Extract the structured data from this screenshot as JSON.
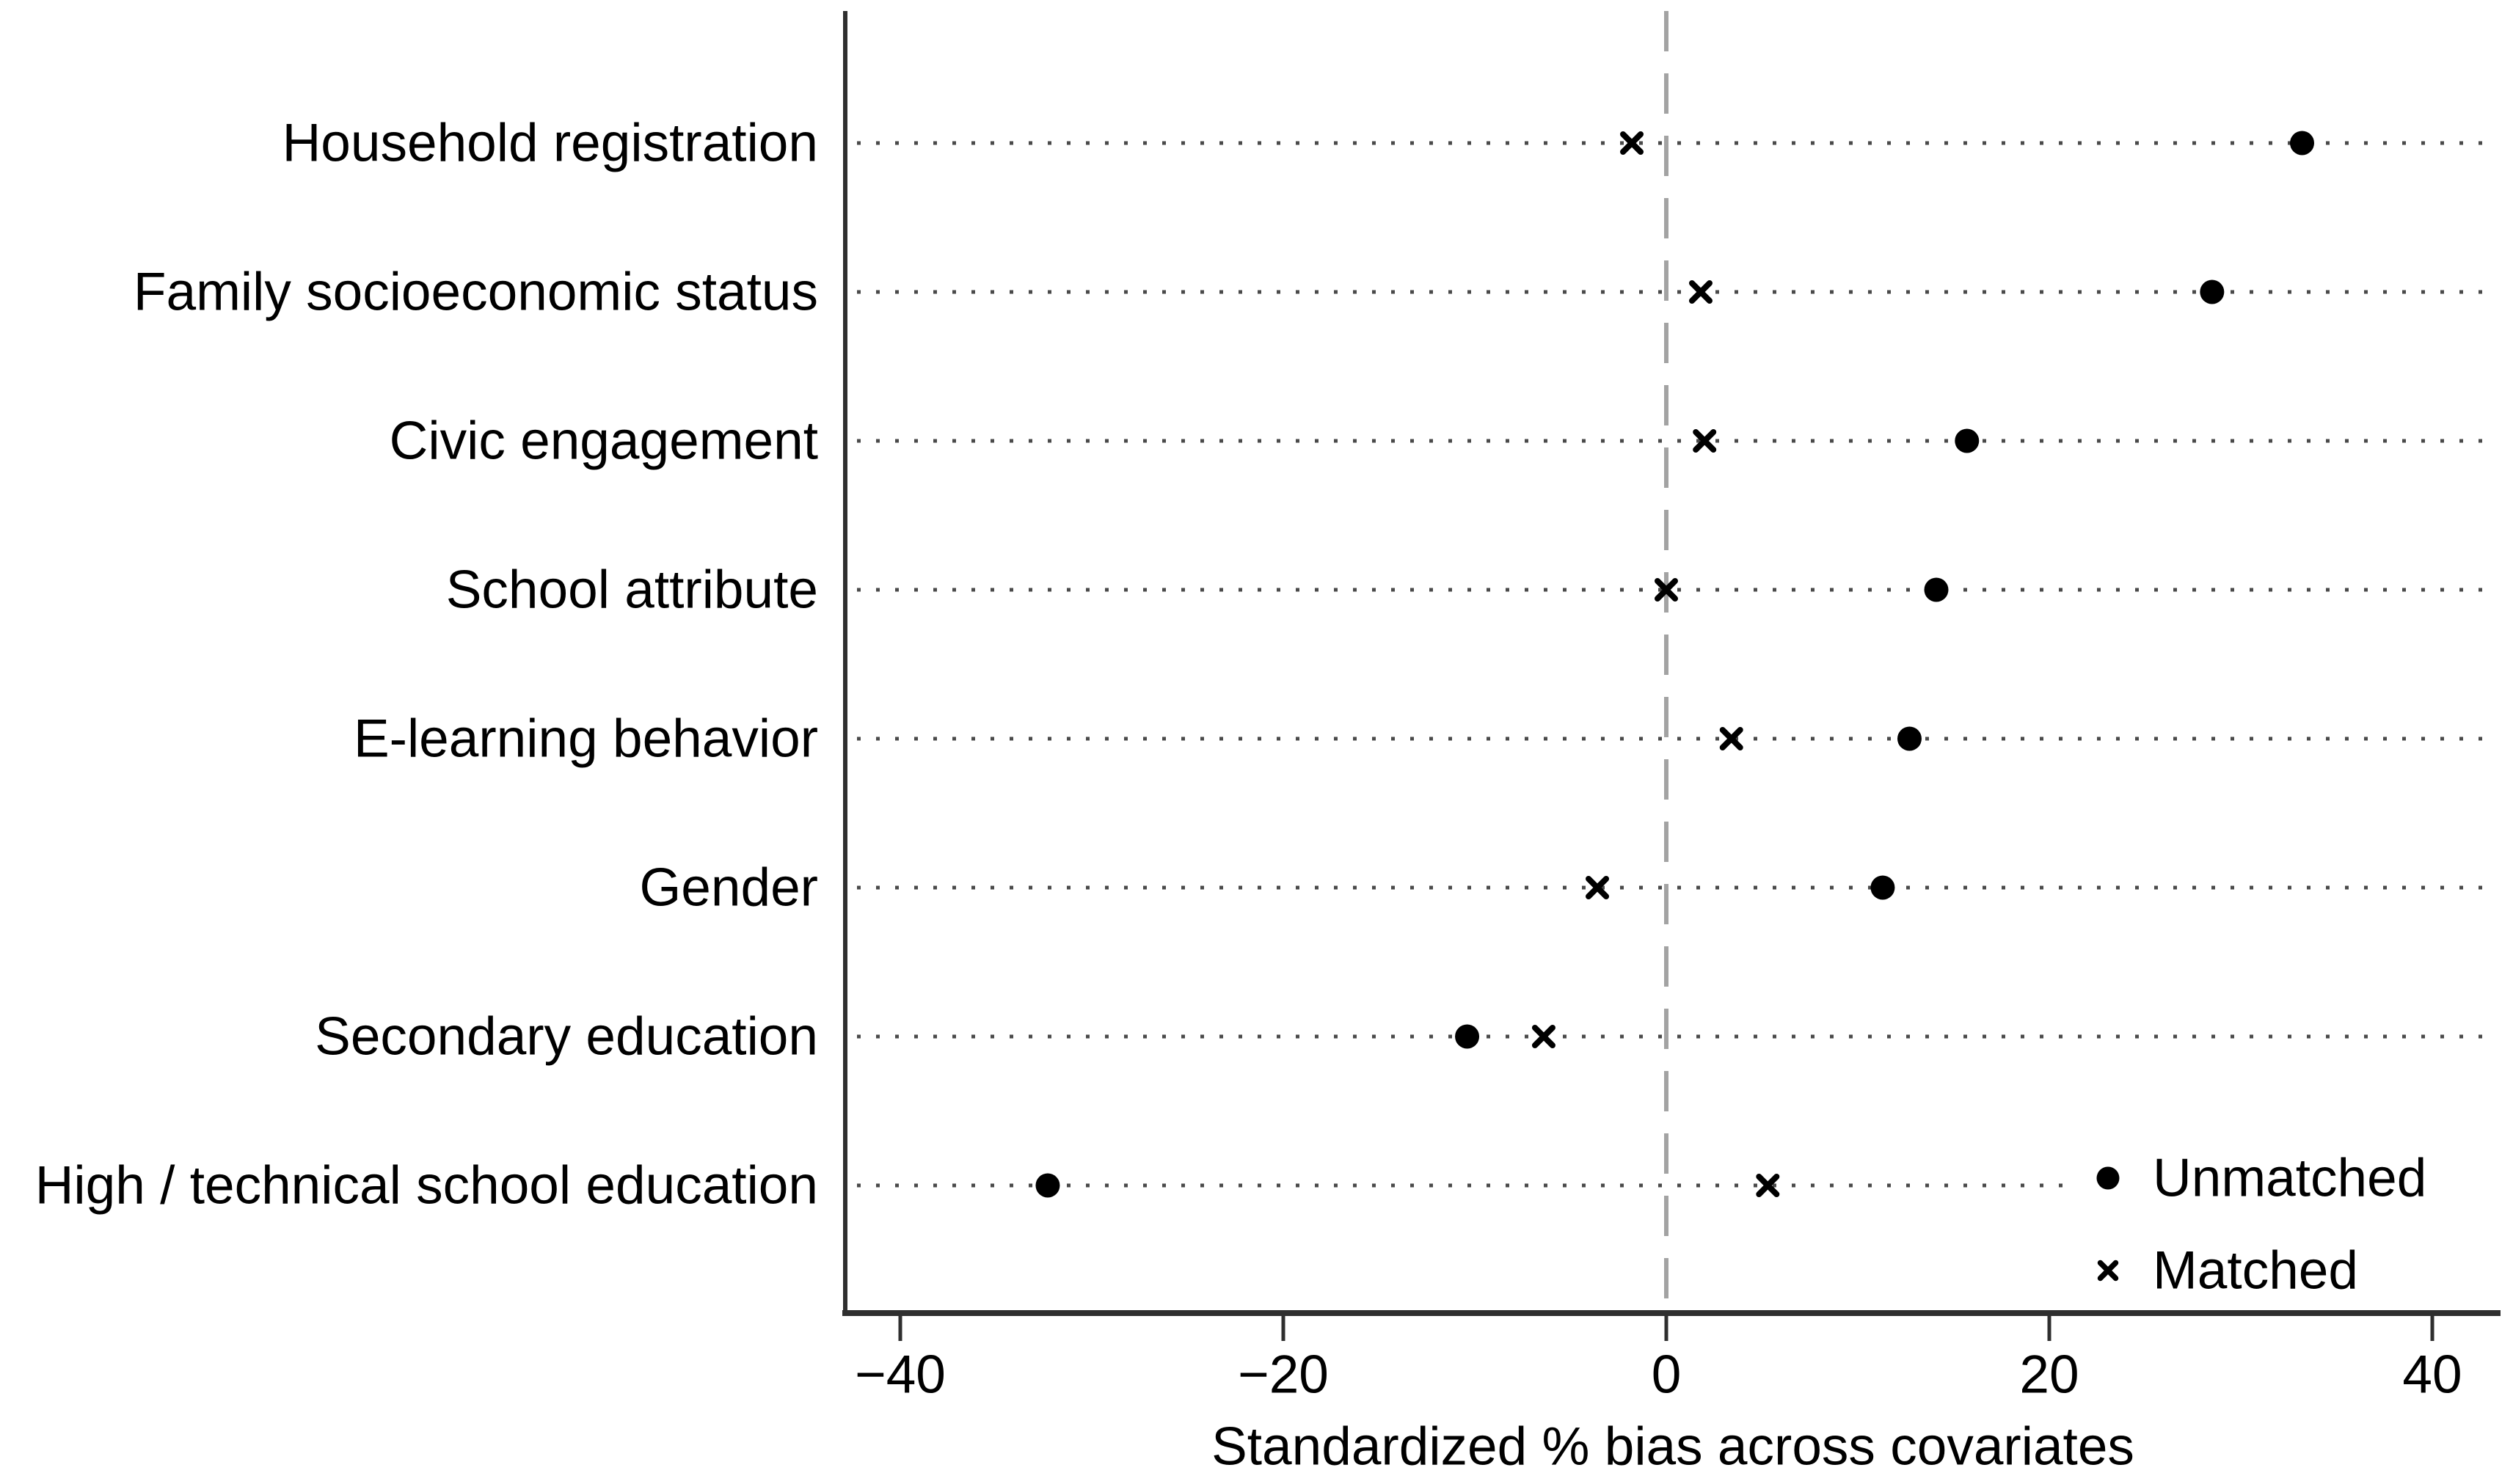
{
  "figure": {
    "title": "",
    "xlabel": "Standardized % bias across covariates"
  },
  "chart_data": {
    "type": "scatter",
    "subtype": "horizontal-dot-plot (covariate balance plot)",
    "title": "",
    "xlabel": "Standardized % bias across covariates",
    "ylabel": "",
    "categories": [
      "Household registration",
      "Family socioeconomic status",
      "Civic engagement",
      "School attribute",
      "E-learning behavior",
      "Gender",
      "Secondary education",
      "High / technical school education"
    ],
    "series": [
      {
        "name": "Unmatched",
        "marker": "filled-circle",
        "values": [
          33.2,
          28.5,
          15.7,
          14.1,
          12.7,
          11.3,
          -10.4,
          -32.3
        ]
      },
      {
        "name": "Matched",
        "marker": "x-cross",
        "values": [
          -1.8,
          1.8,
          2.0,
          0.0,
          3.4,
          -3.6,
          -6.4,
          5.3
        ]
      }
    ],
    "x_ticks": {
      "values": [
        -40,
        -20,
        0,
        20,
        40
      ],
      "labels": [
        "−40",
        "−20",
        "0",
        "20",
        "40"
      ]
    },
    "xlim": [
      -43,
      43.5
    ],
    "reference_line_x": 0,
    "grid": "dotted horizontal gridline per category, vertical gray dashed line at 0",
    "legend": {
      "position": "inside bottom-right",
      "entries": [
        "Unmatched",
        "Matched"
      ]
    },
    "colors": {
      "markers": "#000000",
      "axis": "#2f2f2f",
      "grid_dots": "#4a4a4a",
      "reference_dash": "#a3a3a3",
      "text": "#000000",
      "background": "#ffffff"
    }
  }
}
